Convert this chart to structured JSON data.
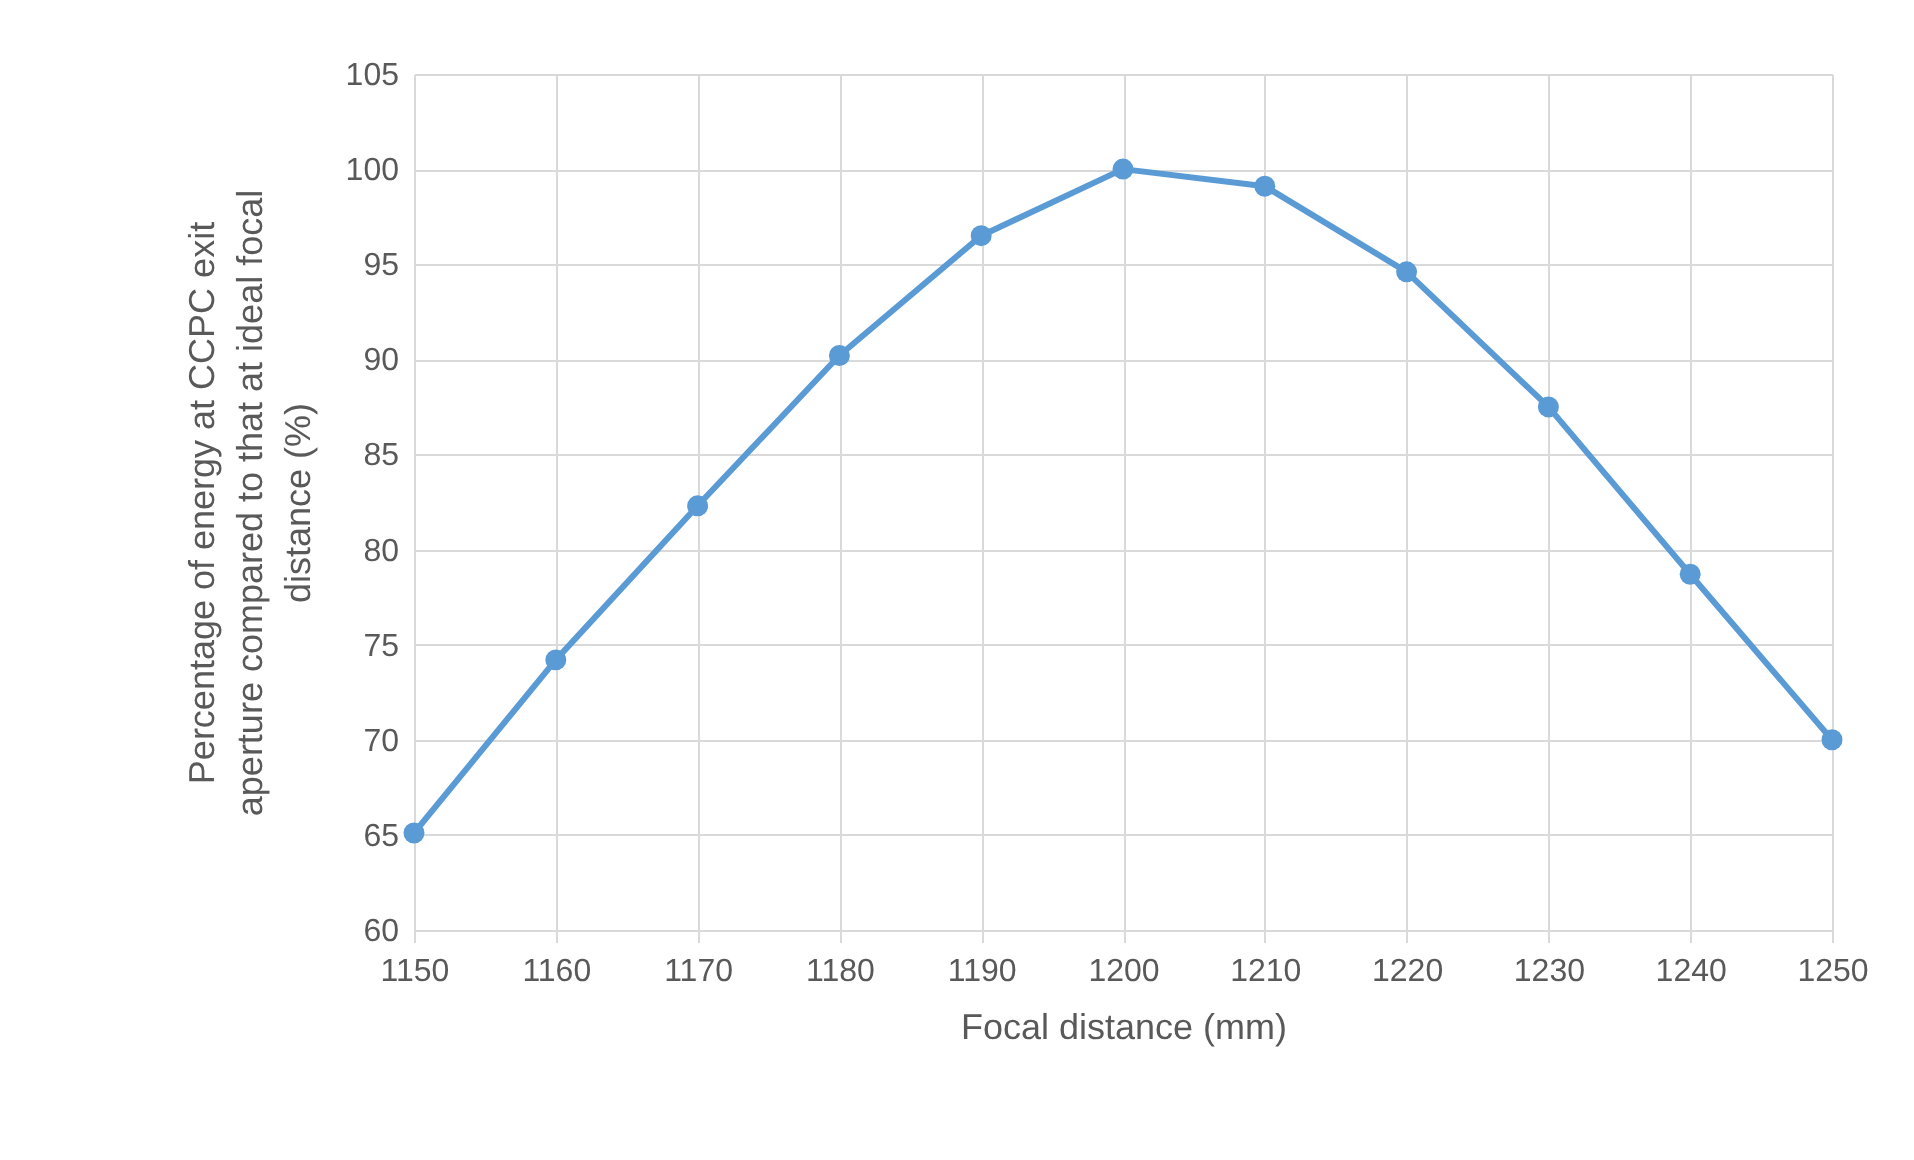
{
  "chart_data": {
    "type": "line",
    "xlabel": "Focal distance (mm)",
    "ylabel": "Percentage of energy at CCPC exit aperture compared to that at ideal  focal distance (%)",
    "x": [
      1150,
      1160,
      1170,
      1180,
      1190,
      1200,
      1210,
      1220,
      1230,
      1240,
      1250
    ],
    "series": [
      {
        "color": "#5b9bd5",
        "values": [
          65.1,
          74.2,
          82.3,
          90.2,
          96.5,
          100,
          99.1,
          94.6,
          87.5,
          78.7,
          70
        ]
      }
    ],
    "xlim": [
      1150,
      1250
    ],
    "xticks": [
      1150,
      1160,
      1170,
      1180,
      1190,
      1200,
      1210,
      1220,
      1230,
      1240,
      1250
    ],
    "ylim": [
      60,
      105
    ],
    "yticks": [
      60,
      65,
      70,
      75,
      80,
      85,
      90,
      95,
      100,
      105
    ],
    "grid": true,
    "marker": "circle",
    "line_style": "solid"
  }
}
